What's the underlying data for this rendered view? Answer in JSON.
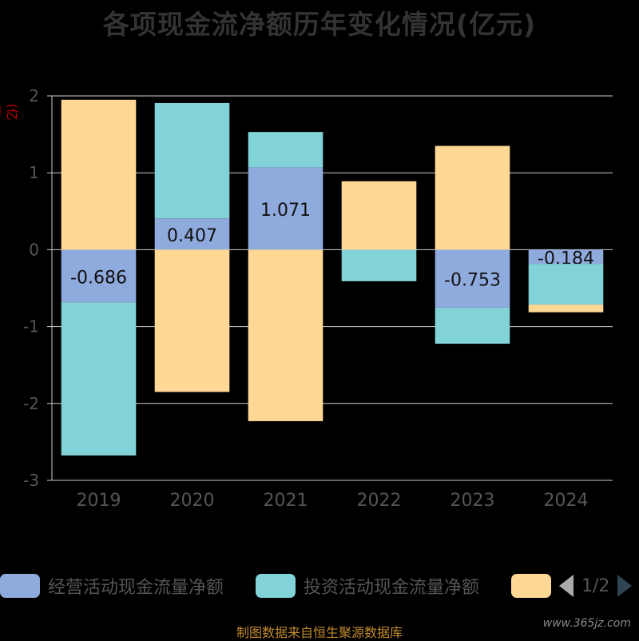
{
  "chart_data": {
    "type": "bar",
    "stacked": true,
    "title": "各项现金流净额历年变化情况(亿元)",
    "yunit": "(亿元)",
    "categories": [
      "2019",
      "2020",
      "2021",
      "2022",
      "2023",
      "2024"
    ],
    "ylim": [
      -3,
      2
    ],
    "yticks": [
      "2",
      "1",
      "0",
      "-1",
      "-2",
      "-3"
    ],
    "grid": true,
    "series": [
      {
        "name": "经营活动现金流量净额",
        "color": "#8faadc",
        "values": [
          -0.686,
          0.407,
          1.071,
          0.0,
          -0.753,
          -0.184
        ],
        "labels": [
          "-0.686",
          "0.407",
          "1.071",
          "",
          "-0.753",
          "-0.184"
        ]
      },
      {
        "name": "投资活动现金流量净额",
        "color": "#82d3d7",
        "values": [
          -1.99,
          1.5,
          0.46,
          -0.41,
          -0.47,
          -0.53
        ],
        "labels": [
          "",
          "",
          "",
          "",
          "",
          ""
        ]
      },
      {
        "name": "",
        "color": "#ffd896",
        "values": [
          1.95,
          -1.85,
          -2.23,
          0.89,
          1.35,
          -0.1
        ],
        "labels": [
          "",
          "",
          "",
          "",
          "",
          ""
        ]
      }
    ],
    "legend_position": "bottom"
  },
  "legend": {
    "items": [
      {
        "label": "经营活动现金流量净额",
        "color": "#8faadc"
      },
      {
        "label": "投资活动现金流量净额",
        "color": "#82d3d7"
      },
      {
        "label": "",
        "color": "#ffd896"
      }
    ],
    "page": "1/2"
  },
  "source": "制图数据来自恒生聚源数据库",
  "watermark": "www.365jz.com"
}
